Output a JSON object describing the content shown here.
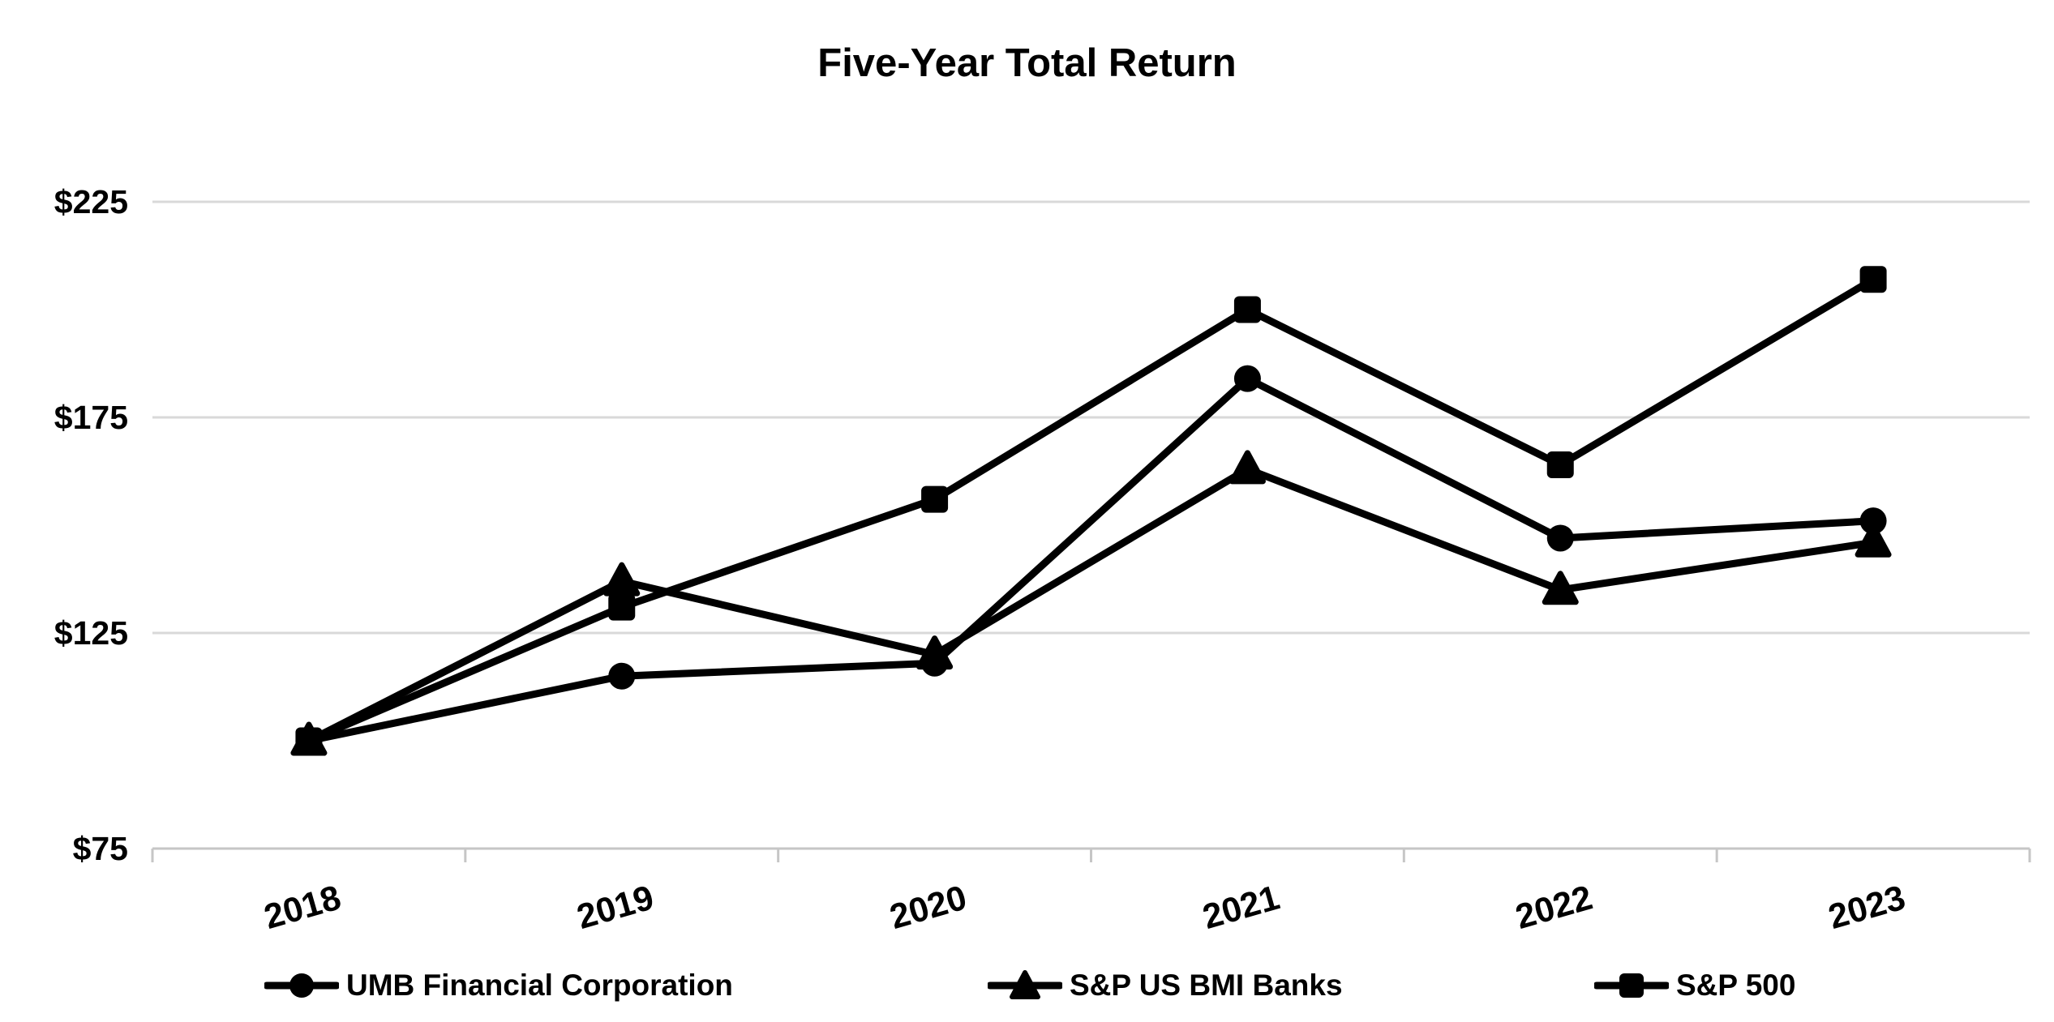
{
  "title": "Five-Year Total Return",
  "chart_data": {
    "type": "line",
    "title": "Five-Year Total Return",
    "categories": [
      "2018",
      "2019",
      "2020",
      "2021",
      "2022",
      "2023"
    ],
    "series": [
      {
        "name": "UMB Financial Corporation",
        "marker": "circle",
        "values": [
          100,
          115,
          118,
          184,
          147,
          151
        ]
      },
      {
        "name": "S&P US BMI Banks",
        "marker": "triangle",
        "values": [
          100,
          137,
          120,
          163,
          135,
          146
        ]
      },
      {
        "name": "S&P 500",
        "marker": "square",
        "values": [
          100,
          131,
          156,
          200,
          164,
          207
        ]
      }
    ],
    "draw_order": [
      1,
      0,
      2
    ],
    "xlabel": "",
    "ylabel": "",
    "y_ticks": [
      75,
      125,
      175,
      225
    ],
    "y_tick_labels": [
      "$75",
      "$125",
      "$175",
      "$225"
    ],
    "ylim": [
      75,
      225
    ],
    "grid": "horizontal-only",
    "legend_position": "bottom",
    "series_color": "#000000",
    "grid_color": "#d9d9d9",
    "axis_color": "#c6c6c6",
    "background_color": "#ffffff"
  }
}
